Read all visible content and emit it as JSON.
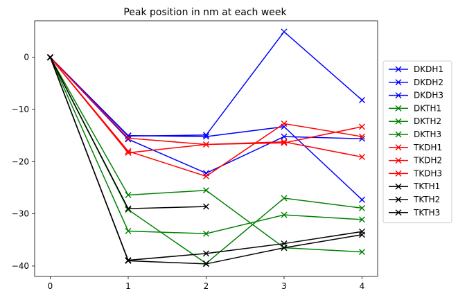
{
  "chart_data": {
    "type": "line",
    "title": "Peak position in nm at each week",
    "xlabel": "",
    "ylabel": "",
    "x": [
      0,
      1,
      2,
      3,
      4
    ],
    "xlim": [
      -0.2,
      4.2
    ],
    "ylim": [
      -42,
      7
    ],
    "xticks": [
      0,
      1,
      2,
      3,
      4
    ],
    "yticks": [
      0,
      -10,
      -20,
      -30,
      -40
    ],
    "grid": false,
    "legend_position": "outside right",
    "marker": "x",
    "series": [
      {
        "name": "DKDH1",
        "color": "#0000ff",
        "values": [
          0,
          -15.1,
          -14.9,
          4.9,
          -8.2
        ]
      },
      {
        "name": "DKDH2",
        "color": "#0000ff",
        "values": [
          0,
          -15.0,
          -15.2,
          -13.3,
          -27.3
        ]
      },
      {
        "name": "DKDH3",
        "color": "#0000ff",
        "values": [
          0,
          -15.7,
          -22.2,
          -15.2,
          -15.6
        ]
      },
      {
        "name": "DKTH1",
        "color": "#008000",
        "values": [
          0,
          -26.4,
          -25.5,
          -36.5,
          -37.3
        ]
      },
      {
        "name": "DKTH2",
        "color": "#008000",
        "values": [
          0,
          -33.3,
          -33.8,
          -30.2,
          -31.1
        ]
      },
      {
        "name": "DKTH3",
        "color": "#008000",
        "values": [
          0,
          -29.2,
          -39.5,
          -27.0,
          -28.9
        ]
      },
      {
        "name": "TKDH1",
        "color": "#ff0000",
        "values": [
          0,
          -15.5,
          -16.7,
          -16.4,
          -13.3
        ]
      },
      {
        "name": "TKDH2",
        "color": "#ff0000",
        "values": [
          0,
          -18.0,
          -22.8,
          -12.7,
          -15.2
        ]
      },
      {
        "name": "TKDH3",
        "color": "#ff0000",
        "values": [
          0,
          -18.3,
          -16.7,
          -16.2,
          -19.1
        ]
      },
      {
        "name": "TKTH1",
        "color": "#000000",
        "values": [
          0,
          -29.0,
          -28.6,
          null,
          null
        ]
      },
      {
        "name": "TKTH2",
        "color": "#000000",
        "values": [
          0,
          -38.9,
          -37.6,
          -35.7,
          -33.4
        ]
      },
      {
        "name": "TKTH3",
        "color": "#000000",
        "values": [
          0,
          -39.0,
          -39.6,
          -36.5,
          -34.0
        ]
      }
    ]
  }
}
